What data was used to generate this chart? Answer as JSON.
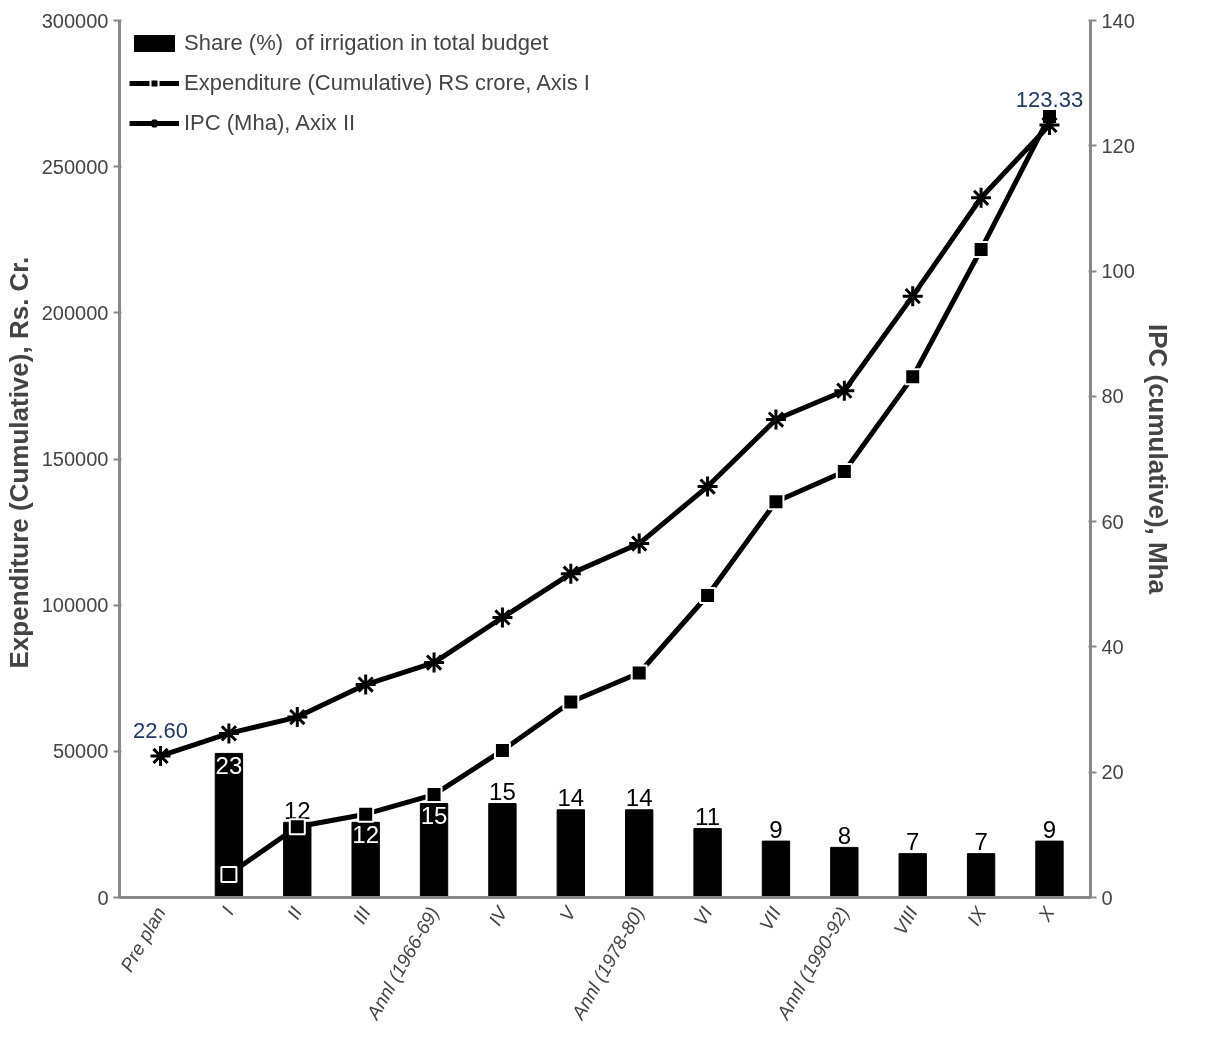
{
  "chart_data": {
    "type": "bar",
    "categories": [
      "Pre plan",
      "I",
      "II",
      "III",
      "Annl (1966-69)",
      "IV",
      "V",
      "Annl (1978-80)",
      "VI",
      "VII",
      "Annl (1990-92)",
      "VIII",
      "IX",
      "X"
    ],
    "ylabel": "Expenditure  (Cumulative), Rs. Cr.",
    "y2label": "IPC (cumulative), Mha",
    "ylim": [
      0,
      300000
    ],
    "yticks": [
      0,
      50000,
      100000,
      150000,
      200000,
      250000,
      300000
    ],
    "y2lim": [
      0,
      140
    ],
    "y2ticks": [
      0,
      20,
      40,
      60,
      80,
      100,
      120,
      140
    ],
    "grid": false,
    "legend": "top left",
    "series": [
      {
        "name": "Share (%)  of irrigation in total budget",
        "axis": "y2",
        "color": "#000000",
        "data_labels": true,
        "values": [
          null,
          23,
          12,
          12,
          15,
          15,
          14,
          14,
          11,
          9,
          8,
          7,
          7,
          9
        ]
      },
      {
        "name": "Expenditure (Cumulative) RS crore, Axis I",
        "type": "line",
        "marker": "square",
        "color": "#000000",
        "values": [
          null,
          7900,
          24200,
          28500,
          35200,
          50300,
          66900,
          76800,
          103300,
          135400,
          145700,
          178100,
          221700,
          267200
        ]
      },
      {
        "name": "IPC (Mha), Axix II",
        "type": "line",
        "marker": "cross",
        "axis": "y2",
        "color": "#000000",
        "values": [
          22.6,
          26.2,
          28.8,
          34.0,
          37.5,
          44.7,
          51.7,
          56.5,
          65.6,
          76.3,
          80.9,
          96.0,
          111.7,
          123.33
        ],
        "value_labels": [
          "22.60",
          null,
          null,
          null,
          null,
          null,
          null,
          null,
          null,
          null,
          null,
          null,
          null,
          "123.33"
        ]
      }
    ]
  }
}
